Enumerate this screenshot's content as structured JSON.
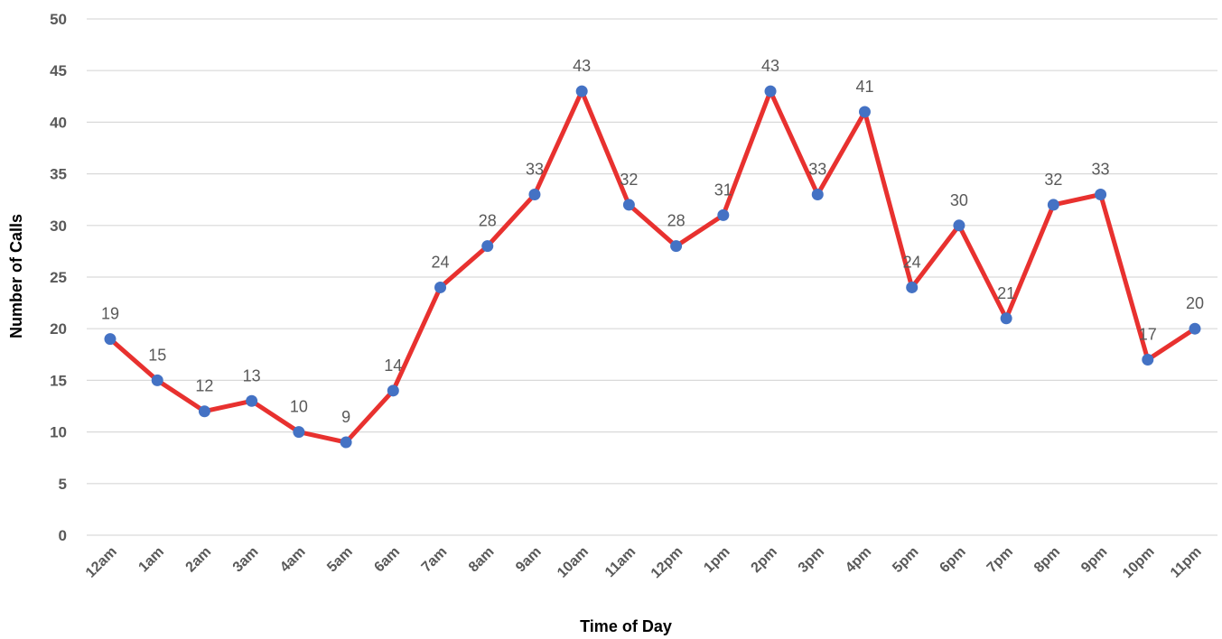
{
  "chart_data": {
    "type": "line",
    "title": "",
    "xlabel": "Time of Day",
    "ylabel": "Number of Calls",
    "categories": [
      "12am",
      "1am",
      "2am",
      "3am",
      "4am",
      "5am",
      "6am",
      "7am",
      "8am",
      "9am",
      "10am",
      "11am",
      "12pm",
      "1pm",
      "2pm",
      "3pm",
      "4pm",
      "5pm",
      "6pm",
      "7pm",
      "8pm",
      "9pm",
      "10pm",
      "11pm"
    ],
    "series": [
      {
        "values": [
          19,
          15,
          12,
          13,
          10,
          9,
          14,
          24,
          28,
          33,
          43,
          32,
          28,
          31,
          43,
          33,
          41,
          24,
          30,
          21,
          32,
          33,
          17,
          20
        ]
      }
    ],
    "ylim": [
      0,
      50
    ],
    "yticks": [
      0,
      5,
      10,
      15,
      20,
      25,
      30,
      35,
      40,
      45,
      50
    ],
    "grid": true,
    "legend": "none",
    "data_labels": true,
    "colors": {
      "line": "#E8312F",
      "marker": "#4472C4",
      "grid": "#D9D9D9",
      "tick_text": "#595959",
      "title_text": "#000000"
    }
  }
}
